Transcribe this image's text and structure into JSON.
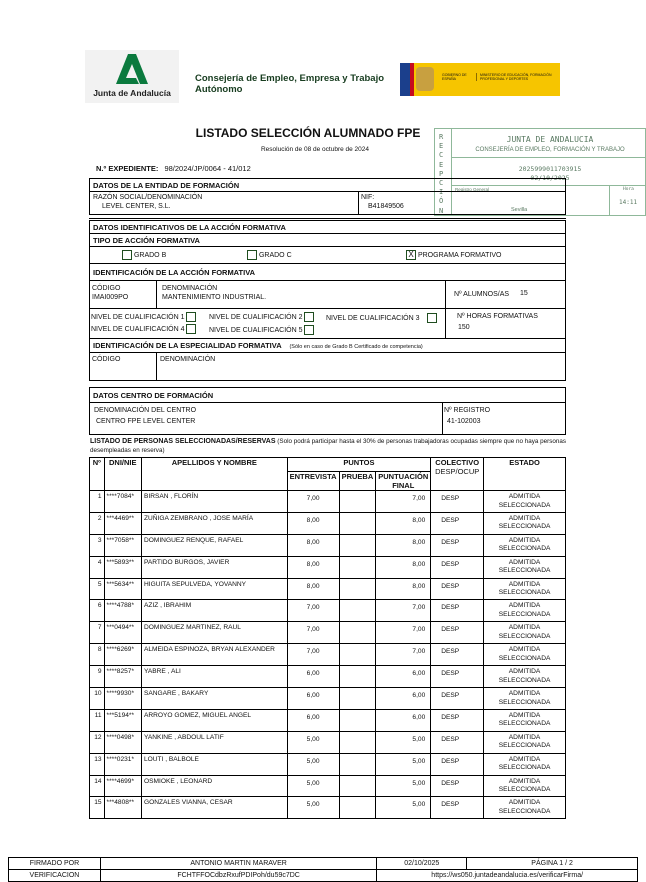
{
  "header": {
    "logo_text": "Junta de Andalucía",
    "consejeria": "Consejería de Empleo, Empresa y Trabajo Autónomo",
    "gov_text": "GOBIERNO DE ESPAÑA",
    "ministry_text": "MINISTERIO DE EDUCACIÓN, FORMACIÓN PROFESIONAL Y DEPORTES"
  },
  "title": "LISTADO SELECCIÓN ALUMNADO FPE",
  "resolucion": "Resolución de 08 de octubre de 2024",
  "expediente": {
    "label": "N.º EXPEDIENTE:",
    "value": "98/2024/JP/0064 - 41/012"
  },
  "stamp": {
    "vertical": "RECEPCIÓN",
    "org": "JUNTA DE ANDALUCIA",
    "dept": "CONSEJERÍA DE EMPLEO, FORMACIÓN Y TRABAJO",
    "number": "2025999011703915",
    "date": "02/10/2025",
    "registro": "Registro General",
    "city": "Sevilla",
    "hora_label": "Hora",
    "hora": "14:11"
  },
  "entidad": {
    "header": "DATOS DE LA ENTIDAD DE FORMACIÓN",
    "razon_label": "RAZÓN SOCIAL/DENOMINACIÓN",
    "razon": "LEVEL CENTER, S.L.",
    "nif_label": "NIF:",
    "nif": "B41849506"
  },
  "accion": {
    "header": "DATOS IDENTIFICATIVOS DE LA ACCIÓN FORMATIVA",
    "tipo_header": "TIPO DE ACCIÓN FORMATIVA",
    "tipos": [
      {
        "label": "GRADO B",
        "mark": ""
      },
      {
        "label": "GRADO C",
        "mark": ""
      },
      {
        "label": "PROGRAMA FORMATIVO",
        "mark": "X"
      }
    ],
    "ident_header": "IDENTIFICACIÓN DE LA ACCIÓN FORMATIVA",
    "codigo_label": "CÓDIGO",
    "codigo": "IMAI009PO",
    "denom_label": "DENOMINACIÓN",
    "denom": "MANTENIMIENTO INDUSTRIAL.",
    "alumnos_label": "Nº ALUMNOS/AS",
    "alumnos": "15",
    "niveles": [
      "NIVEL DE CUALIFICACIÓN 1",
      "NIVEL DE CUALIFICACIÓN 2",
      "NIVEL DE CUALIFICACIÓN 3",
      "NIVEL DE CUALIFICACIÓN 4",
      "NIVEL DE CUALIFICACIÓN 5"
    ],
    "horas_label": "Nº HORAS FORMATIVAS",
    "horas": "150",
    "esp_header": "IDENTIFICACIÓN DE LA ESPECIALIDAD FORMATIVA",
    "esp_note": "(Sólo en caso de Grado B Certificado de competencia)",
    "esp_codigo_label": "CÓDIGO",
    "esp_denom_label": "DENOMINACIÓN"
  },
  "centro": {
    "header": "DATOS CENTRO DE FORMACIÓN",
    "denom_label": "DENOMINACIÓN DEL CENTRO",
    "denom": "CENTRO FPE LEVEL CENTER",
    "registro_label": "Nº REGISTRO",
    "registro": "41-102003"
  },
  "listado": {
    "title": "LISTADO DE PERSONAS SELECCIONADAS/RESERVAS",
    "note": "(Solo podrá participar hasta el 30% de personas trabajadoras ocupadas siempre que no haya personas desempleadas en reserva)",
    "columns": {
      "n": "Nº",
      "dni": "DNI/NIE",
      "nombre": "APELLIDOS Y NOMBRE",
      "puntos": "PUNTOS",
      "entrevista": "ENTREVISTA",
      "prueba": "PRUEBA",
      "final": "PUNTUACIÓN FINAL",
      "colectivo": "COLECTIVO",
      "colectivo_sub": "DESP/OCUP",
      "estado": "ESTADO"
    },
    "rows": [
      {
        "n": "1",
        "dni": "****7084*",
        "nombre": "BIRSAN , FLORÍN",
        "entrevista": "7,00",
        "prueba": "",
        "final": "7,00",
        "colectivo": "DESP",
        "estado": "ADMITIDA SELECCIONADA"
      },
      {
        "n": "2",
        "dni": "***4469**",
        "nombre": "ZUÑIGA ZEMBRANO , JOSE MARÍA",
        "entrevista": "8,00",
        "prueba": "",
        "final": "8,00",
        "colectivo": "DESP",
        "estado": "ADMITIDA SELECCIONADA"
      },
      {
        "n": "3",
        "dni": "***7058**",
        "nombre": "DOMINGUEZ RENQUE, RAFAEL",
        "entrevista": "8,00",
        "prueba": "",
        "final": "8,00",
        "colectivo": "DESP",
        "estado": "ADMITIDA SELECCIONADA"
      },
      {
        "n": "4",
        "dni": "***5893**",
        "nombre": "PARTIDO BURGOS, JAVIER",
        "entrevista": "8,00",
        "prueba": "",
        "final": "8,00",
        "colectivo": "DESP",
        "estado": "ADMITIDA SELECCIONADA"
      },
      {
        "n": "5",
        "dni": "***5634**",
        "nombre": "HIGUITA SEPULVEDA, YOVANNY",
        "entrevista": "8,00",
        "prueba": "",
        "final": "8,00",
        "colectivo": "DESP",
        "estado": "ADMITIDA SELECCIONADA"
      },
      {
        "n": "6",
        "dni": "****4788*",
        "nombre": "AZIZ , IBRAHIM",
        "entrevista": "7,00",
        "prueba": "",
        "final": "7,00",
        "colectivo": "DESP",
        "estado": "ADMITIDA SELECCIONADA"
      },
      {
        "n": "7",
        "dni": "***0494**",
        "nombre": "DOMINGUEZ MARTINEZ, RAUL",
        "entrevista": "7,00",
        "prueba": "",
        "final": "7,00",
        "colectivo": "DESP",
        "estado": "ADMITIDA SELECCIONADA"
      },
      {
        "n": "8",
        "dni": "****6269*",
        "nombre": "ALMEIDA ESPINOZA, BRYAN  ALEXANDER",
        "entrevista": "7,00",
        "prueba": "",
        "final": "7,00",
        "colectivo": "DESP",
        "estado": "ADMITIDA SELECCIONADA"
      },
      {
        "n": "9",
        "dni": "****8257*",
        "nombre": "YABRE , ALI",
        "entrevista": "6,00",
        "prueba": "",
        "final": "6,00",
        "colectivo": "DESP",
        "estado": "ADMITIDA SELECCIONADA"
      },
      {
        "n": "10",
        "dni": "****9930*",
        "nombre": "SANGARE , BAKARY",
        "entrevista": "6,00",
        "prueba": "",
        "final": "6,00",
        "colectivo": "DESP",
        "estado": "ADMITIDA SELECCIONADA"
      },
      {
        "n": "11",
        "dni": "***5194**",
        "nombre": "ARROYO GOMEZ, MIGUEL ANGEL",
        "entrevista": "6,00",
        "prueba": "",
        "final": "6,00",
        "colectivo": "DESP",
        "estado": "ADMITIDA SELECCIONADA"
      },
      {
        "n": "12",
        "dni": "****0498*",
        "nombre": "YANKINE , ABDOUL LATIF",
        "entrevista": "5,00",
        "prueba": "",
        "final": "5,00",
        "colectivo": "DESP",
        "estado": "ADMITIDA SELECCIONADA"
      },
      {
        "n": "13",
        "dni": "****0231*",
        "nombre": "LOUTI , BALBOLE",
        "entrevista": "5,00",
        "prueba": "",
        "final": "5,00",
        "colectivo": "DESP",
        "estado": "ADMITIDA SELECCIONADA"
      },
      {
        "n": "14",
        "dni": "****4699*",
        "nombre": "OSMIOKE , LEONARD",
        "entrevista": "5,00",
        "prueba": "",
        "final": "5,00",
        "colectivo": "DESP",
        "estado": "ADMITIDA SELECCIONADA"
      },
      {
        "n": "15",
        "dni": "***4808**",
        "nombre": "GONZALES VIANNA, CESAR",
        "entrevista": "5,00",
        "prueba": "",
        "final": "5,00",
        "colectivo": "DESP",
        "estado": "ADMITIDA SELECCIONADA"
      }
    ]
  },
  "footer": {
    "firmado_label": "FIRMADO POR",
    "firmado": "ANTONIO MARTIN MARAVER",
    "date": "02/10/2025",
    "page": "PÁGINA 1 / 2",
    "verif_label": "VERIFICACION",
    "verif_code": "FCHTFFOCdbzRxufPDIPoh/du59c7DC",
    "verif_url": "https://ws050.juntadeandalucia.es/verificarFirma/"
  },
  "colors": {
    "junta_green": "#0b7a3e",
    "gov_yellow": "#f6c500",
    "stamp_green": "#5a7a62"
  }
}
